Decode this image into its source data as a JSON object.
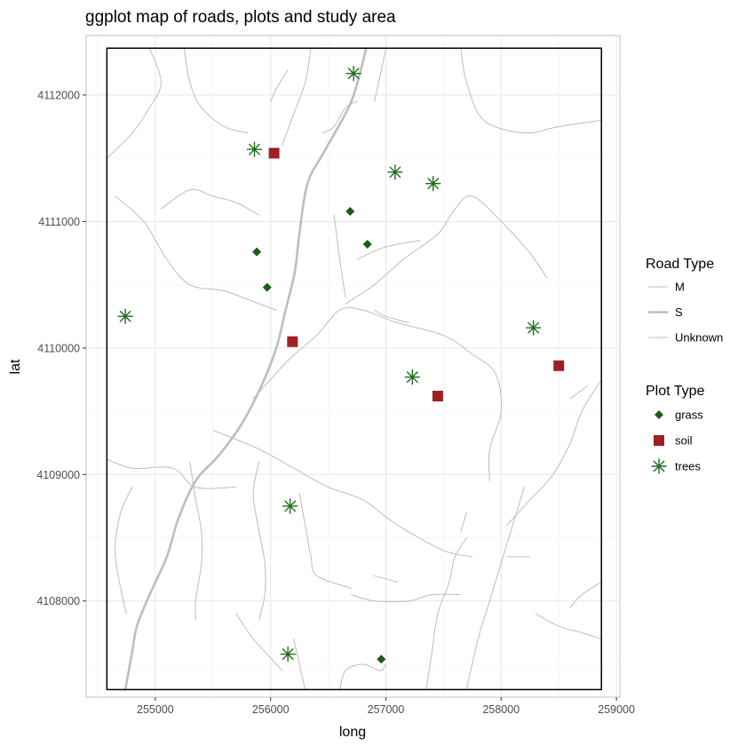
{
  "chart_data": {
    "type": "scatter",
    "title": "ggplot map of roads, plots and study area",
    "xlabel": "long",
    "ylabel": "lat",
    "xlim": [
      254400,
      259030
    ],
    "ylim": [
      4107240,
      4112470
    ],
    "x_ticks": [
      255000,
      256000,
      257000,
      258000,
      259000
    ],
    "y_ticks": [
      4108000,
      4109000,
      4110000,
      4111000,
      4112000
    ],
    "grid": true,
    "legend_position": "right",
    "study_area": {
      "xmin": 254580,
      "xmax": 258870,
      "ymin": 4107300,
      "ymax": 4112370
    },
    "road_legend": {
      "title": "Road Type",
      "entries": [
        {
          "label": "M",
          "color": "#bdbdbd",
          "width": 1
        },
        {
          "label": "S",
          "color": "#bdbdbd",
          "width": 2.6
        },
        {
          "label": "Unknown",
          "color": "#bdbdbd",
          "width": 1
        }
      ]
    },
    "plot_legend": {
      "title": "Plot Type",
      "entries": [
        {
          "label": "grass",
          "color": "#1a5c1a",
          "shape": "diamond"
        },
        {
          "label": "soil",
          "color": "#9e1f24",
          "shape": "square"
        },
        {
          "label": "trees",
          "color": "#1f6b1f",
          "shape": "asterisk"
        }
      ]
    },
    "roads": [
      {
        "type": "S",
        "points": [
          [
            254740,
            4107300
          ],
          [
            254800,
            4107600
          ],
          [
            254840,
            4107800
          ],
          [
            254950,
            4108050
          ],
          [
            255100,
            4108350
          ],
          [
            255200,
            4108650
          ],
          [
            255350,
            4108950
          ],
          [
            255550,
            4109150
          ],
          [
            255750,
            4109400
          ],
          [
            255920,
            4109700
          ],
          [
            256050,
            4110000
          ],
          [
            256130,
            4110300
          ],
          [
            256210,
            4110600
          ],
          [
            256250,
            4110900
          ],
          [
            256320,
            4111300
          ],
          [
            256470,
            4111560
          ],
          [
            256700,
            4111950
          ],
          [
            256830,
            4112370
          ]
        ]
      },
      {
        "type": "M",
        "points": [
          [
            254580,
            4109120
          ],
          [
            254800,
            4109050
          ],
          [
            255150,
            4109050
          ],
          [
            255350,
            4108900
          ],
          [
            255700,
            4108900
          ]
        ]
      },
      {
        "type": "M",
        "points": [
          [
            255500,
            4109350
          ],
          [
            255900,
            4109200
          ],
          [
            256200,
            4109050
          ],
          [
            256500,
            4108900
          ],
          [
            256800,
            4108800
          ],
          [
            257100,
            4108600
          ],
          [
            257500,
            4108400
          ],
          [
            257750,
            4108350
          ]
        ]
      },
      {
        "type": "M",
        "points": [
          [
            255850,
            4109600
          ],
          [
            256150,
            4109900
          ],
          [
            256400,
            4110100
          ],
          [
            256600,
            4110300
          ],
          [
            256800,
            4110300
          ],
          [
            257100,
            4110200
          ],
          [
            257500,
            4110100
          ],
          [
            257750,
            4109950
          ],
          [
            257950,
            4109800
          ],
          [
            258000,
            4109500
          ],
          [
            257900,
            4109200
          ],
          [
            257900,
            4108950
          ]
        ]
      },
      {
        "type": "M",
        "points": [
          [
            256350,
            4112370
          ],
          [
            256300,
            4112100
          ],
          [
            256200,
            4111850
          ],
          [
            256100,
            4111600
          ]
        ]
      },
      {
        "type": "M",
        "points": [
          [
            256150,
            4112200
          ],
          [
            256050,
            4112050
          ],
          [
            256000,
            4111950
          ]
        ]
      },
      {
        "type": "M",
        "points": [
          [
            257000,
            4112370
          ],
          [
            256950,
            4112150
          ],
          [
            256900,
            4111950
          ]
        ]
      },
      {
        "type": "M",
        "points": [
          [
            256450,
            4111700
          ],
          [
            256550,
            4111750
          ],
          [
            256650,
            4111900
          ],
          [
            256750,
            4111950
          ]
        ]
      },
      {
        "type": "M",
        "points": [
          [
            257650,
            4112370
          ],
          [
            257700,
            4112100
          ],
          [
            257850,
            4111800
          ],
          [
            258200,
            4111700
          ],
          [
            258500,
            4111750
          ],
          [
            258870,
            4111800
          ]
        ]
      },
      {
        "type": "M",
        "points": [
          [
            254580,
            4111500
          ],
          [
            254800,
            4111700
          ],
          [
            254950,
            4111900
          ],
          [
            255050,
            4112100
          ],
          [
            254950,
            4112370
          ]
        ]
      },
      {
        "type": "M",
        "points": [
          [
            255250,
            4112370
          ],
          [
            255300,
            4112100
          ],
          [
            255400,
            4111900
          ],
          [
            255600,
            4111750
          ],
          [
            255800,
            4111700
          ]
        ]
      },
      {
        "type": "M",
        "points": [
          [
            254650,
            4111200
          ],
          [
            254900,
            4111000
          ],
          [
            255100,
            4110700
          ],
          [
            255300,
            4110500
          ],
          [
            255600,
            4110450
          ],
          [
            255900,
            4110350
          ],
          [
            256050,
            4110300
          ]
        ]
      },
      {
        "type": "M",
        "points": [
          [
            255050,
            4111100
          ],
          [
            255300,
            4111250
          ],
          [
            255500,
            4111200
          ],
          [
            255700,
            4111150
          ],
          [
            255900,
            4111050
          ]
        ]
      },
      {
        "type": "M",
        "points": [
          [
            256550,
            4111050
          ],
          [
            256600,
            4110700
          ],
          [
            256650,
            4110400
          ]
        ]
      },
      {
        "type": "M",
        "points": [
          [
            256650,
            4110350
          ],
          [
            256900,
            4110500
          ],
          [
            257150,
            4110700
          ],
          [
            257450,
            4110900
          ],
          [
            257600,
            4111100
          ],
          [
            257750,
            4111200
          ],
          [
            258000,
            4111000
          ],
          [
            258250,
            4110750
          ],
          [
            258400,
            4110550
          ]
        ]
      },
      {
        "type": "M",
        "points": [
          [
            256750,
            4110700
          ],
          [
            257000,
            4110800
          ],
          [
            257300,
            4110850
          ]
        ]
      },
      {
        "type": "M",
        "points": [
          [
            256900,
            4110300
          ],
          [
            257000,
            4110250
          ],
          [
            257200,
            4110200
          ]
        ]
      },
      {
        "type": "M",
        "points": [
          [
            258870,
            4109750
          ],
          [
            258700,
            4109500
          ],
          [
            258600,
            4109250
          ],
          [
            258450,
            4109000
          ],
          [
            258250,
            4108800
          ],
          [
            258050,
            4108600
          ]
        ]
      },
      {
        "type": "M",
        "points": [
          [
            258870,
            4108150
          ],
          [
            258700,
            4108050
          ],
          [
            258600,
            4107950
          ]
        ]
      },
      {
        "type": "M",
        "points": [
          [
            258300,
            4107900
          ],
          [
            258500,
            4107800
          ],
          [
            258700,
            4107750
          ],
          [
            258870,
            4107700
          ]
        ]
      },
      {
        "type": "M",
        "points": [
          [
            257700,
            4107300
          ],
          [
            257800,
            4107700
          ],
          [
            257900,
            4108000
          ],
          [
            258000,
            4108300
          ],
          [
            258100,
            4108600
          ],
          [
            258200,
            4108900
          ]
        ]
      },
      {
        "type": "M",
        "points": [
          [
            258050,
            4108350
          ],
          [
            258250,
            4108350
          ]
        ]
      },
      {
        "type": "M",
        "points": [
          [
            257350,
            4107300
          ],
          [
            257400,
            4107600
          ],
          [
            257450,
            4107900
          ],
          [
            257550,
            4108150
          ],
          [
            257600,
            4108350
          ],
          [
            257700,
            4108500
          ]
        ]
      },
      {
        "type": "M",
        "points": [
          [
            256600,
            4107300
          ],
          [
            256650,
            4107450
          ],
          [
            256800,
            4107500
          ],
          [
            256950,
            4107450
          ],
          [
            257000,
            4107500
          ]
        ]
      },
      {
        "type": "M",
        "points": [
          [
            256300,
            4107300
          ],
          [
            256250,
            4107500
          ],
          [
            256200,
            4107700
          ]
        ]
      },
      {
        "type": "M",
        "points": [
          [
            256700,
            4108050
          ],
          [
            256900,
            4108000
          ],
          [
            257200,
            4108000
          ],
          [
            257400,
            4108050
          ],
          [
            257650,
            4108050
          ]
        ]
      },
      {
        "type": "M",
        "points": [
          [
            255300,
            4109100
          ],
          [
            255350,
            4108800
          ],
          [
            255400,
            4108550
          ],
          [
            255400,
            4108300
          ],
          [
            255350,
            4108000
          ],
          [
            255350,
            4107850
          ]
        ]
      },
      {
        "type": "M",
        "points": [
          [
            254800,
            4108900
          ],
          [
            254700,
            4108700
          ],
          [
            254650,
            4108400
          ],
          [
            254700,
            4108100
          ],
          [
            254750,
            4107900
          ]
        ]
      },
      {
        "type": "M",
        "points": [
          [
            255900,
            4109100
          ],
          [
            255850,
            4108850
          ],
          [
            255900,
            4108550
          ],
          [
            255950,
            4108300
          ],
          [
            255950,
            4108050
          ],
          [
            255900,
            4107850
          ]
        ]
      },
      {
        "type": "M",
        "points": [
          [
            256250,
            4108850
          ],
          [
            256300,
            4108600
          ],
          [
            256350,
            4108350
          ],
          [
            256400,
            4108200
          ],
          [
            256700,
            4108100
          ]
        ]
      },
      {
        "type": "M",
        "points": [
          [
            257700,
            4108700
          ],
          [
            257650,
            4108550
          ]
        ]
      },
      {
        "type": "M",
        "points": [
          [
            256900,
            4108200
          ],
          [
            257100,
            4108150
          ]
        ]
      },
      {
        "type": "M",
        "points": [
          [
            255700,
            4107900
          ],
          [
            255850,
            4107700
          ],
          [
            256000,
            4107550
          ],
          [
            256100,
            4107450
          ]
        ]
      },
      {
        "type": "M",
        "points": [
          [
            258600,
            4109600
          ],
          [
            258750,
            4109700
          ]
        ]
      }
    ],
    "plots": [
      {
        "type": "trees",
        "x": 256720,
        "y": 4112170
      },
      {
        "type": "trees",
        "x": 255860,
        "y": 4111570
      },
      {
        "type": "soil",
        "x": 256030,
        "y": 4111540
      },
      {
        "type": "trees",
        "x": 257080,
        "y": 4111390
      },
      {
        "type": "trees",
        "x": 257410,
        "y": 4111300
      },
      {
        "type": "grass",
        "x": 256690,
        "y": 4111080
      },
      {
        "type": "grass",
        "x": 256840,
        "y": 4110820
      },
      {
        "type": "grass",
        "x": 255880,
        "y": 4110760
      },
      {
        "type": "grass",
        "x": 255970,
        "y": 4110480
      },
      {
        "type": "trees",
        "x": 254740,
        "y": 4110250
      },
      {
        "type": "trees",
        "x": 258280,
        "y": 4110160
      },
      {
        "type": "soil",
        "x": 256190,
        "y": 4110050
      },
      {
        "type": "soil",
        "x": 258500,
        "y": 4109860
      },
      {
        "type": "trees",
        "x": 257230,
        "y": 4109770
      },
      {
        "type": "soil",
        "x": 257450,
        "y": 4109620
      },
      {
        "type": "trees",
        "x": 256170,
        "y": 4108750
      },
      {
        "type": "trees",
        "x": 256150,
        "y": 4107580
      },
      {
        "type": "grass",
        "x": 256960,
        "y": 4107540
      }
    ]
  }
}
